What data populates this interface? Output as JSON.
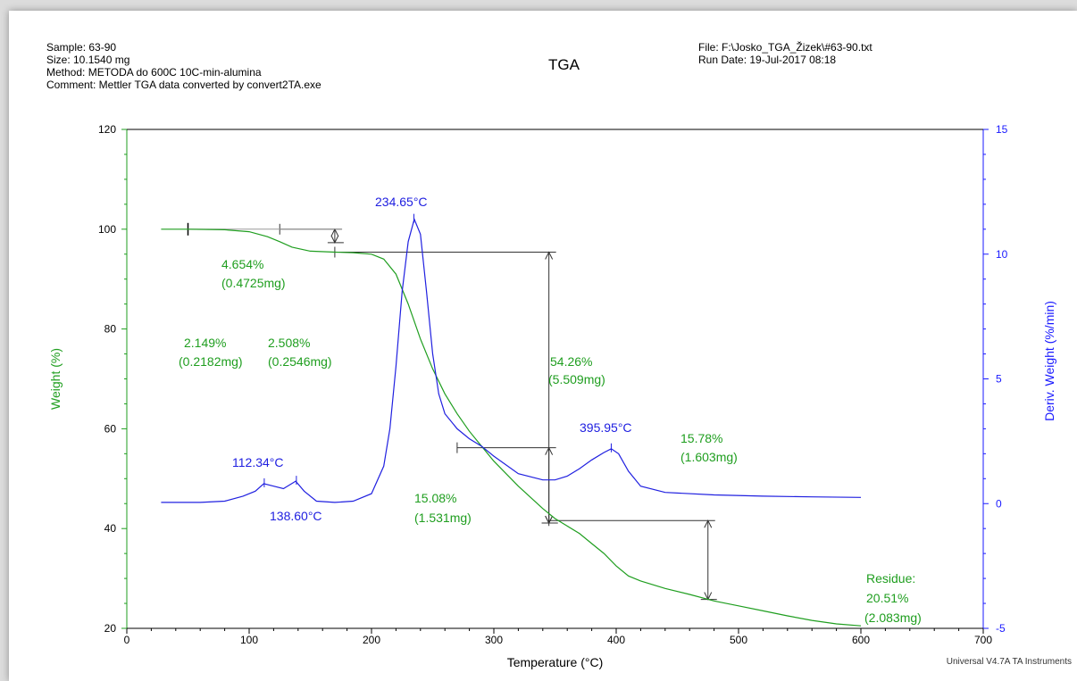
{
  "header": {
    "sample": "Sample: 63-90",
    "size": "Size:  10.1540 mg",
    "method": "Method: METODA do 600C 10C-min-alumina",
    "comment": "Comment: Mettler TGA data converted by convert2TA.exe",
    "title": "TGA",
    "file": "File: F:\\Josko_TGA_Žizek\\#63-90.txt",
    "run_date": "Run Date: 19-Jul-2017 08:18"
  },
  "footer": "Universal V4.7A TA Instruments",
  "colors": {
    "weight": "#1f9e1f",
    "deriv": "#2020e0",
    "axis_left": "#1f9e1f",
    "axis_right": "#1a1aff"
  },
  "chart_data": {
    "type": "line",
    "title": "TGA",
    "xlabel": "Temperature (°C)",
    "ylabel_left": "Weight (%)",
    "ylabel_right": "Deriv. Weight (%/min)",
    "xlim": [
      0,
      700
    ],
    "ylim_left": [
      20,
      120
    ],
    "ylim_right": [
      -5,
      15
    ],
    "x_ticks": [
      "0",
      "100",
      "200",
      "300",
      "400",
      "500",
      "600",
      "700"
    ],
    "y_left_ticks": [
      "20",
      "40",
      "60",
      "80",
      "100",
      "120"
    ],
    "y_right_ticks": [
      "-5",
      "0",
      "5",
      "10",
      "15"
    ],
    "series": [
      {
        "name": "Weight (%)",
        "axis": "left",
        "x": [
          28,
          50,
          80,
          100,
          115,
          125,
          135,
          150,
          170,
          185,
          200,
          210,
          220,
          230,
          240,
          250,
          260,
          270,
          280,
          290,
          300,
          320,
          340,
          350,
          360,
          370,
          380,
          390,
          400,
          410,
          420,
          440,
          460,
          480,
          500,
          520,
          540,
          560,
          580,
          600
        ],
        "y": [
          100.0,
          100.0,
          99.9,
          99.5,
          98.5,
          97.5,
          96.4,
          95.6,
          95.4,
          95.3,
          95.0,
          94.0,
          91.0,
          85.0,
          78.0,
          72.0,
          67.0,
          63.0,
          59.5,
          56.5,
          53.5,
          48.5,
          44.0,
          42.0,
          40.5,
          39.0,
          37.0,
          35.0,
          32.5,
          30.5,
          29.5,
          28.0,
          26.8,
          25.5,
          24.5,
          23.5,
          22.5,
          21.6,
          20.9,
          20.5
        ]
      },
      {
        "name": "Deriv. Weight (%/min)",
        "axis": "right",
        "x": [
          28,
          60,
          80,
          95,
          105,
          112,
          120,
          128,
          138,
          145,
          155,
          170,
          185,
          200,
          210,
          215,
          220,
          225,
          230,
          235,
          240,
          245,
          250,
          255,
          260,
          270,
          280,
          290,
          300,
          320,
          340,
          350,
          360,
          370,
          380,
          390,
          396,
          402,
          410,
          420,
          440,
          480,
          520,
          560,
          600
        ],
        "y": [
          0.05,
          0.05,
          0.1,
          0.3,
          0.5,
          0.8,
          0.7,
          0.6,
          0.9,
          0.5,
          0.1,
          0.05,
          0.1,
          0.4,
          1.5,
          3.0,
          5.5,
          8.5,
          10.5,
          11.4,
          10.8,
          8.5,
          6.0,
          4.4,
          3.6,
          3.0,
          2.6,
          2.3,
          1.9,
          1.2,
          0.95,
          0.95,
          1.1,
          1.4,
          1.75,
          2.05,
          2.2,
          2.0,
          1.3,
          0.7,
          0.45,
          0.35,
          0.3,
          0.27,
          0.25
        ]
      }
    ],
    "annotations": [
      {
        "text": "4.654%",
        "color": "green"
      },
      {
        "text": "(0.4725mg)",
        "color": "green"
      },
      {
        "text": "2.149%",
        "color": "green"
      },
      {
        "text": "(0.2182mg)",
        "color": "green"
      },
      {
        "text": "2.508%",
        "color": "green"
      },
      {
        "text": "(0.2546mg)",
        "color": "green"
      },
      {
        "text": "54.26%",
        "color": "green"
      },
      {
        "text": "(5.509mg)",
        "color": "green"
      },
      {
        "text": "15.08%",
        "color": "green"
      },
      {
        "text": "(1.531mg)",
        "color": "green"
      },
      {
        "text": "15.78%",
        "color": "green"
      },
      {
        "text": "(1.603mg)",
        "color": "green"
      },
      {
        "text": "Residue:",
        "color": "green"
      },
      {
        "text": "20.51%",
        "color": "green"
      },
      {
        "text": "(2.083mg)",
        "color": "green"
      },
      {
        "text": "234.65°C",
        "color": "blue"
      },
      {
        "text": "112.34°C",
        "color": "blue"
      },
      {
        "text": "138.60°C",
        "color": "blue"
      },
      {
        "text": "395.95°C",
        "color": "blue"
      }
    ],
    "step_markers": [
      {
        "t_start": 125,
        "t_end": 170,
        "w_from": 100.0,
        "w_to": 97.3
      },
      {
        "t_start": 170,
        "t_end": 345,
        "w_from": 95.4,
        "w_to": 41.1
      },
      {
        "t_start": 270,
        "t_end": 345,
        "w_from": 56.2,
        "w_to": 41.1
      },
      {
        "t_start": 345,
        "t_end": 475,
        "w_from": 41.6,
        "w_to": 25.8
      }
    ],
    "grid": false
  }
}
